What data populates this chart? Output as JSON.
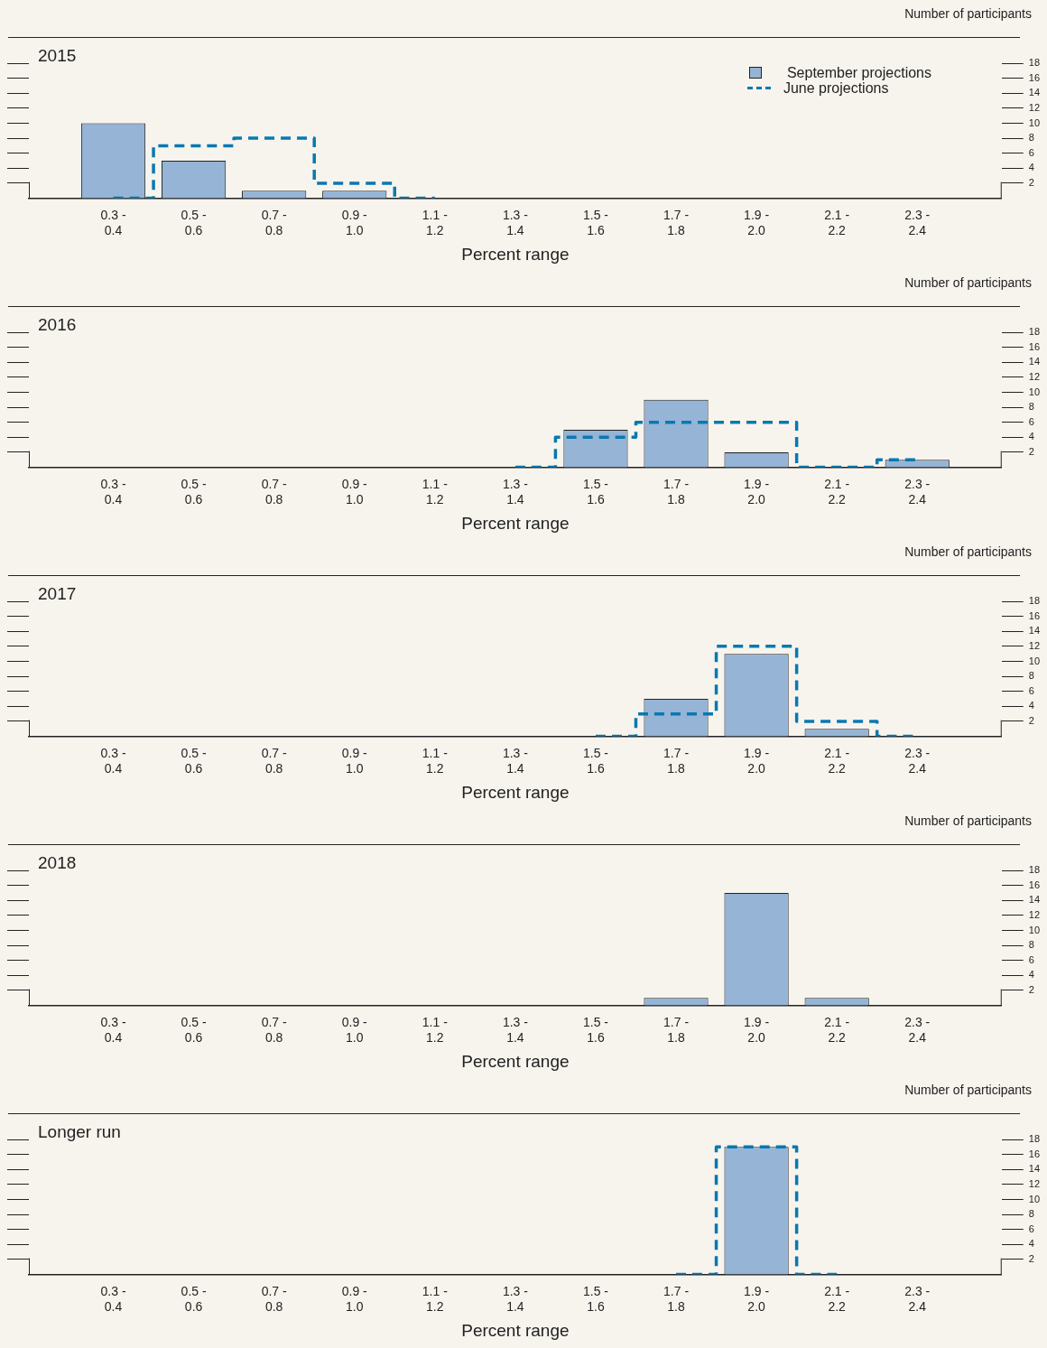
{
  "chart_data": [
    {
      "type": "bar",
      "title": "2015",
      "ylabel": "Number of participants",
      "xlabel": "Percent range",
      "categories": [
        "0.3 -\n0.4",
        "0.5 -\n0.6",
        "0.7 -\n0.8",
        "0.9 -\n1.0",
        "1.1 -\n1.2",
        "1.3 -\n1.4",
        "1.5 -\n1.6",
        "1.7 -\n1.8",
        "1.9 -\n2.0",
        "2.1 -\n2.2",
        "2.3 -\n2.4"
      ],
      "series": [
        {
          "name": "September projections",
          "color": "#95b4d6",
          "values": [
            10,
            5,
            1,
            1,
            null,
            null,
            null,
            null,
            null,
            null,
            null
          ]
        },
        {
          "name": "June projections",
          "type": "step",
          "color": "#0a78b0",
          "line_style": "dashed",
          "values": [
            0,
            7,
            8,
            2,
            0,
            null,
            null,
            null,
            null,
            null,
            null
          ]
        }
      ],
      "ylim": [
        0,
        18
      ],
      "yticks": [
        2,
        4,
        6,
        8,
        10,
        12,
        14,
        16,
        18
      ],
      "legend": "top right"
    },
    {
      "type": "bar",
      "title": "2016",
      "ylabel": "Number of participants",
      "xlabel": "Percent range",
      "categories": [
        "0.3 -\n0.4",
        "0.5 -\n0.6",
        "0.7 -\n0.8",
        "0.9 -\n1.0",
        "1.1 -\n1.2",
        "1.3 -\n1.4",
        "1.5 -\n1.6",
        "1.7 -\n1.8",
        "1.9 -\n2.0",
        "2.1 -\n2.2",
        "2.3 -\n2.4"
      ],
      "series": [
        {
          "color": "#95b4d6",
          "values": [
            null,
            null,
            null,
            null,
            null,
            null,
            5,
            9,
            2,
            null,
            1
          ]
        },
        {
          "type": "step",
          "color": "#0a78b0",
          "line_style": "dashed",
          "values": [
            null,
            null,
            null,
            null,
            null,
            0,
            4,
            6,
            6,
            0,
            1
          ]
        }
      ],
      "ylim": [
        0,
        18
      ],
      "yticks": [
        2,
        4,
        6,
        8,
        10,
        12,
        14,
        16,
        18
      ]
    },
    {
      "type": "bar",
      "title": "2017",
      "ylabel": "Number of participants",
      "xlabel": "Percent range",
      "categories": [
        "0.3 -\n0.4",
        "0.5 -\n0.6",
        "0.7 -\n0.8",
        "0.9 -\n1.0",
        "1.1 -\n1.2",
        "1.3 -\n1.4",
        "1.5 -\n1.6",
        "1.7 -\n1.8",
        "1.9 -\n2.0",
        "2.1 -\n2.2",
        "2.3 -\n2.4"
      ],
      "series": [
        {
          "color": "#95b4d6",
          "values": [
            null,
            null,
            null,
            null,
            null,
            null,
            null,
            5,
            11,
            1,
            null
          ]
        },
        {
          "type": "step",
          "color": "#0a78b0",
          "line_style": "dashed",
          "values": [
            null,
            null,
            null,
            null,
            null,
            null,
            0,
            3,
            12,
            2,
            0
          ]
        }
      ],
      "ylim": [
        0,
        18
      ],
      "yticks": [
        2,
        4,
        6,
        8,
        10,
        12,
        14,
        16,
        18
      ]
    },
    {
      "type": "bar",
      "title": "2018",
      "ylabel": "Number of participants",
      "xlabel": "Percent range",
      "categories": [
        "0.3 -\n0.4",
        "0.5 -\n0.6",
        "0.7 -\n0.8",
        "0.9 -\n1.0",
        "1.1 -\n1.2",
        "1.3 -\n1.4",
        "1.5 -\n1.6",
        "1.7 -\n1.8",
        "1.9 -\n2.0",
        "2.1 -\n2.2",
        "2.3 -\n2.4"
      ],
      "series": [
        {
          "color": "#95b4d6",
          "values": [
            null,
            null,
            null,
            null,
            null,
            null,
            null,
            1,
            15,
            1,
            null
          ]
        }
      ],
      "ylim": [
        0,
        18
      ],
      "yticks": [
        2,
        4,
        6,
        8,
        10,
        12,
        14,
        16,
        18
      ]
    },
    {
      "type": "bar",
      "title": "Longer run",
      "ylabel": "Number of participants",
      "xlabel": "Percent range",
      "categories": [
        "0.3 -\n0.4",
        "0.5 -\n0.6",
        "0.7 -\n0.8",
        "0.9 -\n1.0",
        "1.1 -\n1.2",
        "1.3 -\n1.4",
        "1.5 -\n1.6",
        "1.7 -\n1.8",
        "1.9 -\n2.0",
        "2.1 -\n2.2",
        "2.3 -\n2.4"
      ],
      "series": [
        {
          "color": "#95b4d6",
          "values": [
            null,
            null,
            null,
            null,
            null,
            null,
            null,
            null,
            17,
            null,
            null
          ]
        },
        {
          "type": "step",
          "color": "#0a78b0",
          "line_style": "dashed",
          "values": [
            null,
            null,
            null,
            null,
            null,
            null,
            null,
            0,
            17,
            0,
            null
          ]
        }
      ],
      "ylim": [
        0,
        18
      ],
      "yticks": [
        2,
        4,
        6,
        8,
        10,
        12,
        14,
        16,
        18
      ]
    }
  ]
}
